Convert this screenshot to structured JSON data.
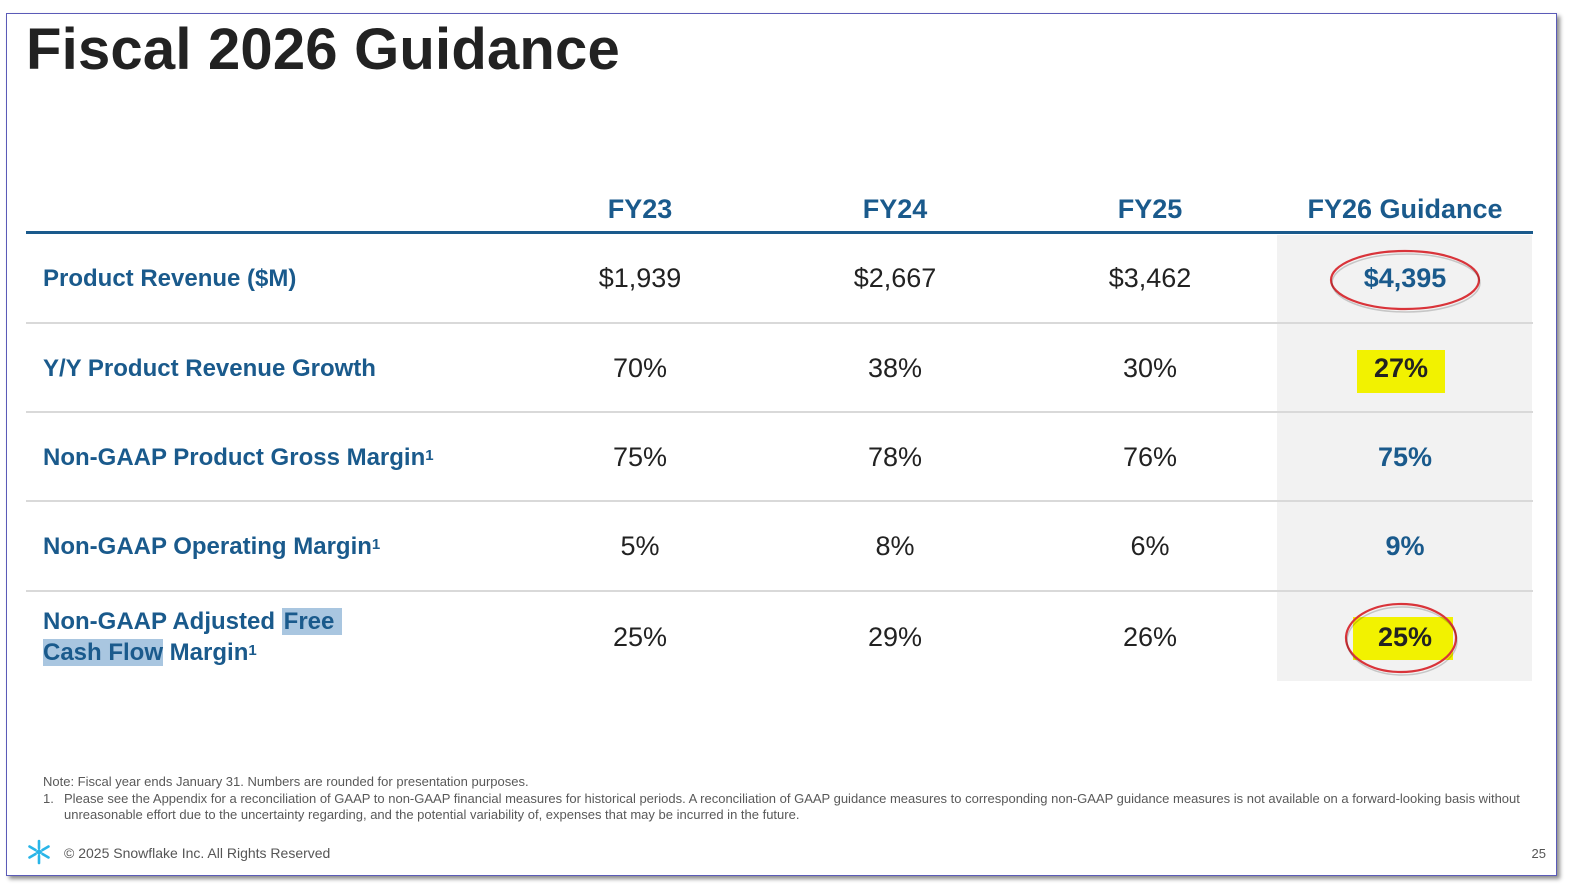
{
  "slide": {
    "title": "Fiscal 2026 Guidance",
    "columns": [
      "FY23",
      "FY24",
      "FY25",
      "FY26 Guidance"
    ],
    "rows": [
      {
        "label": "Product Revenue ($M)",
        "sup": "",
        "values": [
          "$1,939",
          "$2,667",
          "$3,462",
          "$4,395"
        ]
      },
      {
        "label": "Y/Y Product Revenue Growth",
        "sup": "",
        "values": [
          "70%",
          "38%",
          "30%",
          "27%"
        ]
      },
      {
        "label": "Non-GAAP Product Gross Margin",
        "sup": "1",
        "values": [
          "75%",
          "78%",
          "76%",
          "75%"
        ]
      },
      {
        "label": "Non-GAAP Operating Margin",
        "sup": "1",
        "values": [
          "5%",
          "8%",
          "6%",
          "9%"
        ]
      },
      {
        "label_parts": [
          "Non-GAAP Adjusted ",
          "Free",
          "Cash Flow",
          " Margin"
        ],
        "sup": "1",
        "values": [
          "25%",
          "29%",
          "26%",
          "25%"
        ]
      }
    ],
    "note": "Note: Fiscal year ends January 31. Numbers are rounded for presentation purposes.",
    "footnote_number": "1.",
    "footnote": "Please see the Appendix for a reconciliation of GAAP to non-GAAP financial measures for historical periods. A reconciliation of GAAP guidance measures to corresponding non-GAAP guidance measures is not available on a forward-looking basis without unreasonable effort due to the uncertainty regarding, and the potential variability of, expenses that may be incurred in the future.",
    "copyright": "© 2025 Snowflake Inc. All Rights Reserved",
    "page_number": "25"
  },
  "colors": {
    "brand_blue": "#1a5a8c",
    "highlight_yellow": "#f2f200",
    "selection_blue": "#a9c6e0",
    "annotation_red": "#d9343a",
    "logo_cyan": "#29b5e8"
  },
  "icons": {
    "logo": "snowflake-logo-icon"
  }
}
